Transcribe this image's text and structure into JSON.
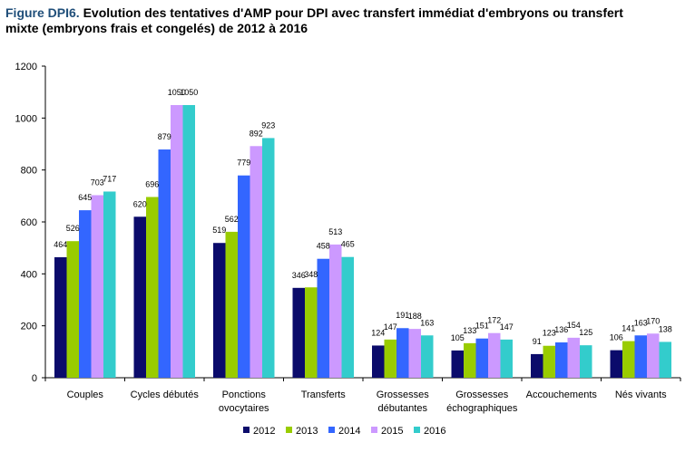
{
  "header": {
    "lead": "Figure DPI6.",
    "title": " Evolution des tentatives d'AMP pour DPI avec transfert immédiat d'embryons ou transfert\n mixte (embryons frais et congelés) de 2012 à 2016"
  },
  "chart_data": {
    "type": "bar",
    "categories": [
      [
        "Couples"
      ],
      [
        "Cycles débutés"
      ],
      [
        "Ponctions",
        "ovocytaires"
      ],
      [
        "Transferts"
      ],
      [
        "Grossesses",
        "débutantes"
      ],
      [
        "Grossesses",
        "échographiques"
      ],
      [
        "Accouchements"
      ],
      [
        "Nés vivants"
      ]
    ],
    "series": [
      {
        "name": "2012",
        "color": "#0b0b6b",
        "values": [
          464,
          620,
          519,
          346,
          124,
          105,
          91,
          106
        ]
      },
      {
        "name": "2013",
        "color": "#99cc00",
        "values": [
          526,
          696,
          562,
          348,
          147,
          133,
          123,
          141
        ]
      },
      {
        "name": "2014",
        "color": "#3366ff",
        "values": [
          645,
          879,
          779,
          458,
          191,
          151,
          136,
          163
        ]
      },
      {
        "name": "2015",
        "color": "#cc99ff",
        "values": [
          703,
          1050,
          892,
          513,
          188,
          172,
          154,
          170
        ]
      },
      {
        "name": "2016",
        "color": "#33cccc",
        "values": [
          717,
          1050,
          923,
          465,
          163,
          147,
          125,
          138
        ]
      }
    ],
    "yticks": [
      0,
      200,
      400,
      600,
      800,
      1000,
      1200
    ],
    "ylim": [
      0,
      1200
    ],
    "grid": false,
    "legend_position": "bottom"
  }
}
